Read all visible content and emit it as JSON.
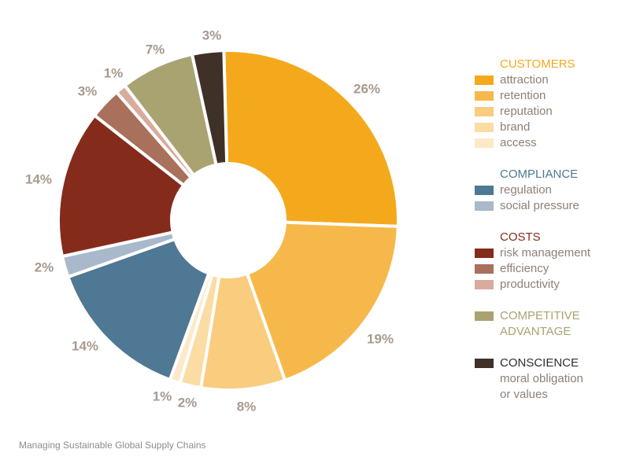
{
  "chart_data": {
    "type": "pie",
    "slices": [
      {
        "label": "attraction",
        "value": 26,
        "display": "26%",
        "color": "#f4a91c"
      },
      {
        "label": "retention",
        "value": 19,
        "display": "19%",
        "color": "#f7b84b"
      },
      {
        "label": "reputation",
        "value": 8,
        "display": "8%",
        "color": "#f9cc7e"
      },
      {
        "label": "brand",
        "value": 2,
        "display": "2%",
        "color": "#fbdca4"
      },
      {
        "label": "access",
        "value": 1,
        "display": "1%",
        "color": "#fde9c8"
      },
      {
        "label": "regulation",
        "value": 14,
        "display": "14%",
        "color": "#4e7894"
      },
      {
        "label": "social pressure",
        "value": 2,
        "display": "2%",
        "color": "#a9b9cb"
      },
      {
        "label": "risk management",
        "value": 14,
        "display": "14%",
        "color": "#852b1b"
      },
      {
        "label": "efficiency",
        "value": 3,
        "display": "3%",
        "color": "#a9705c"
      },
      {
        "label": "productivity",
        "value": 1,
        "display": "1%",
        "color": "#d8ab9c"
      },
      {
        "label": "COMPETITIVE ADVANTAGE",
        "value": 7,
        "display": "7%",
        "color": "#a9a372"
      },
      {
        "label": "CONSCIENCE",
        "value": 3,
        "display": "3%",
        "color": "#3f3128"
      }
    ],
    "legend_position": "right"
  },
  "legend": {
    "groups": [
      {
        "title": "CUSTOMERS",
        "title_color": "#f4a91c",
        "items": [
          {
            "label": "attraction",
            "color": "#f4a91c"
          },
          {
            "label": "retention",
            "color": "#f7b84b"
          },
          {
            "label": "reputation",
            "color": "#f9cc7e"
          },
          {
            "label": "brand",
            "color": "#fbdca4"
          },
          {
            "label": "access",
            "color": "#fde9c8"
          }
        ]
      },
      {
        "title": "COMPLIANCE",
        "title_color": "#4e7894",
        "items": [
          {
            "label": "regulation",
            "color": "#4e7894"
          },
          {
            "label": "social pressure",
            "color": "#a9b9cb"
          }
        ]
      },
      {
        "title": "COSTS",
        "title_color": "#852b1b",
        "items": [
          {
            "label": "risk management",
            "color": "#852b1b"
          },
          {
            "label": "efficiency",
            "color": "#a9705c"
          },
          {
            "label": "productivity",
            "color": "#d8ab9c"
          }
        ]
      }
    ],
    "competitive": {
      "label": "COMPETITIVE\nADVANTAGE",
      "color": "#a9a372"
    },
    "conscience": {
      "label": "CONSCIENCE",
      "color": "#3f3128",
      "sub": "moral obligation\nor values"
    }
  },
  "source": "Managing Sustainable Global Supply Chains"
}
